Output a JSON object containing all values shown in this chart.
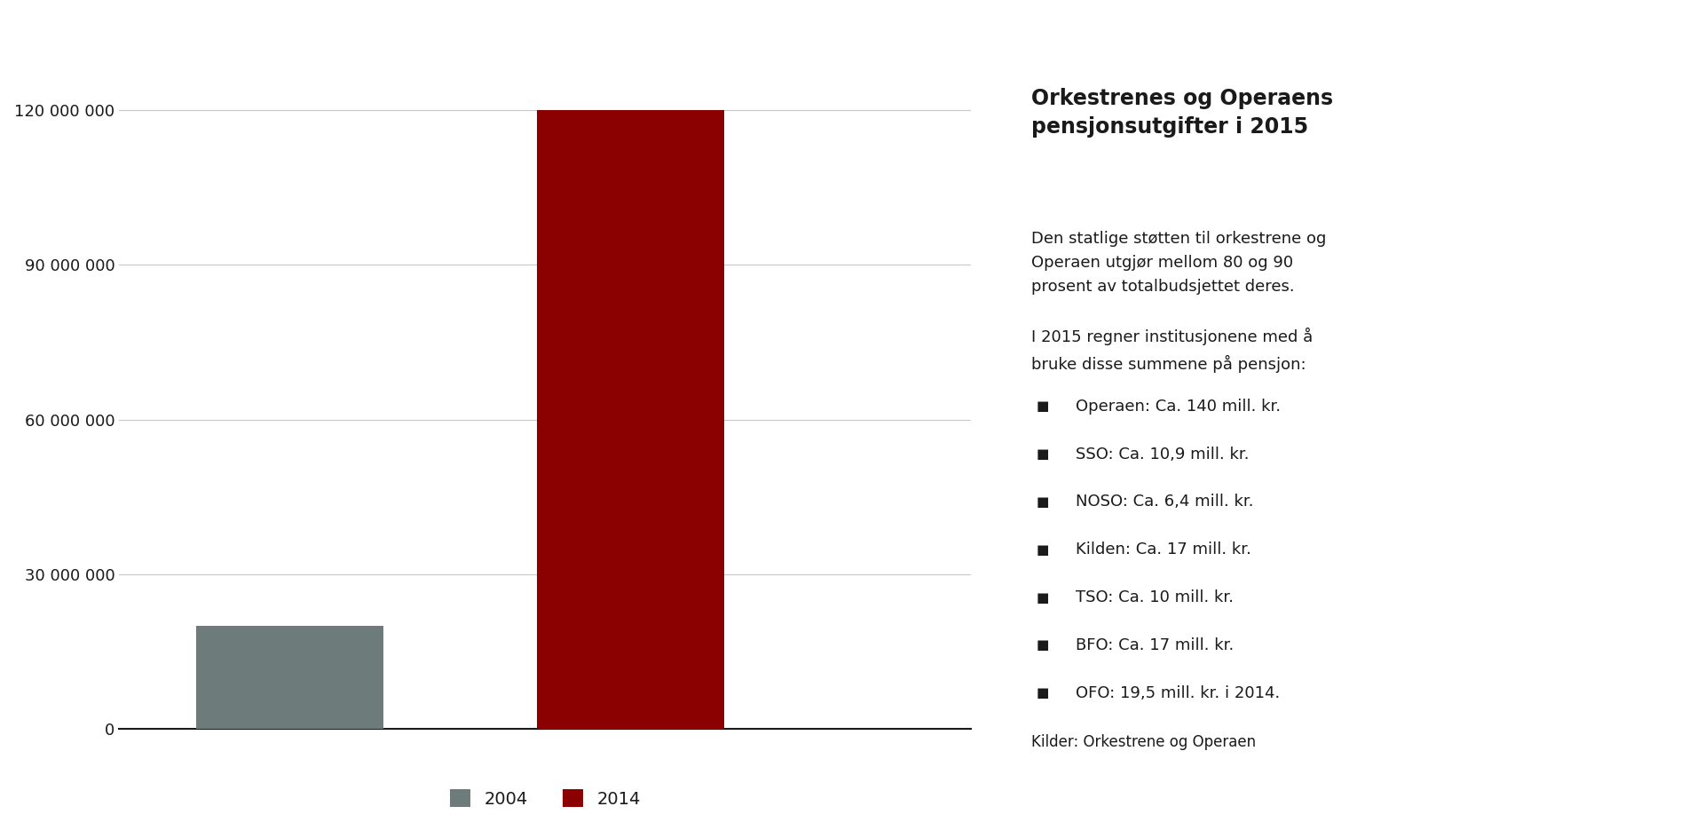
{
  "categories": [
    "2004",
    "2014"
  ],
  "values": [
    20000000,
    120000000
  ],
  "bar_colors": [
    "#6e7b7b",
    "#8b0000"
  ],
  "background_color": "#ffffff",
  "ylim": [
    0,
    130000000
  ],
  "yticks": [
    0,
    30000000,
    60000000,
    90000000,
    120000000
  ],
  "ytick_labels": [
    "0",
    "30 000 000",
    "60 000 000",
    "90 000 000",
    "120 000 000"
  ],
  "title": "Orkestrenes og Operaens\npensjonsutgifter i 2015",
  "body_text": "Den statlige støtten til orkestrene og\nOperaen utgjør mellom 80 og 90\nprosent av totalbudsjettet deres.\n\nI 2015 regner institusjonene med å\nbruke disse summene på pensjon:",
  "legend_items": [
    "Operaen: Ca. 140 mill. kr.",
    "SSO: Ca. 10,9 mill. kr.",
    "NOSO: Ca. 6,4 mill. kr.",
    "Kilden: Ca. 17 mill. kr.",
    "TSO: Ca. 10 mill. kr.",
    "BFO: Ca. 17 mill. kr.",
    "OFO: 19,5 mill. kr. i 2014."
  ],
  "source_text": "Kilder: Orkestrene og Operaen",
  "legend_color": "#1a1a1a",
  "text_color": "#1a1a1a",
  "grid_color": "#c8c8c8",
  "axis_line_color": "#1a1a1a"
}
